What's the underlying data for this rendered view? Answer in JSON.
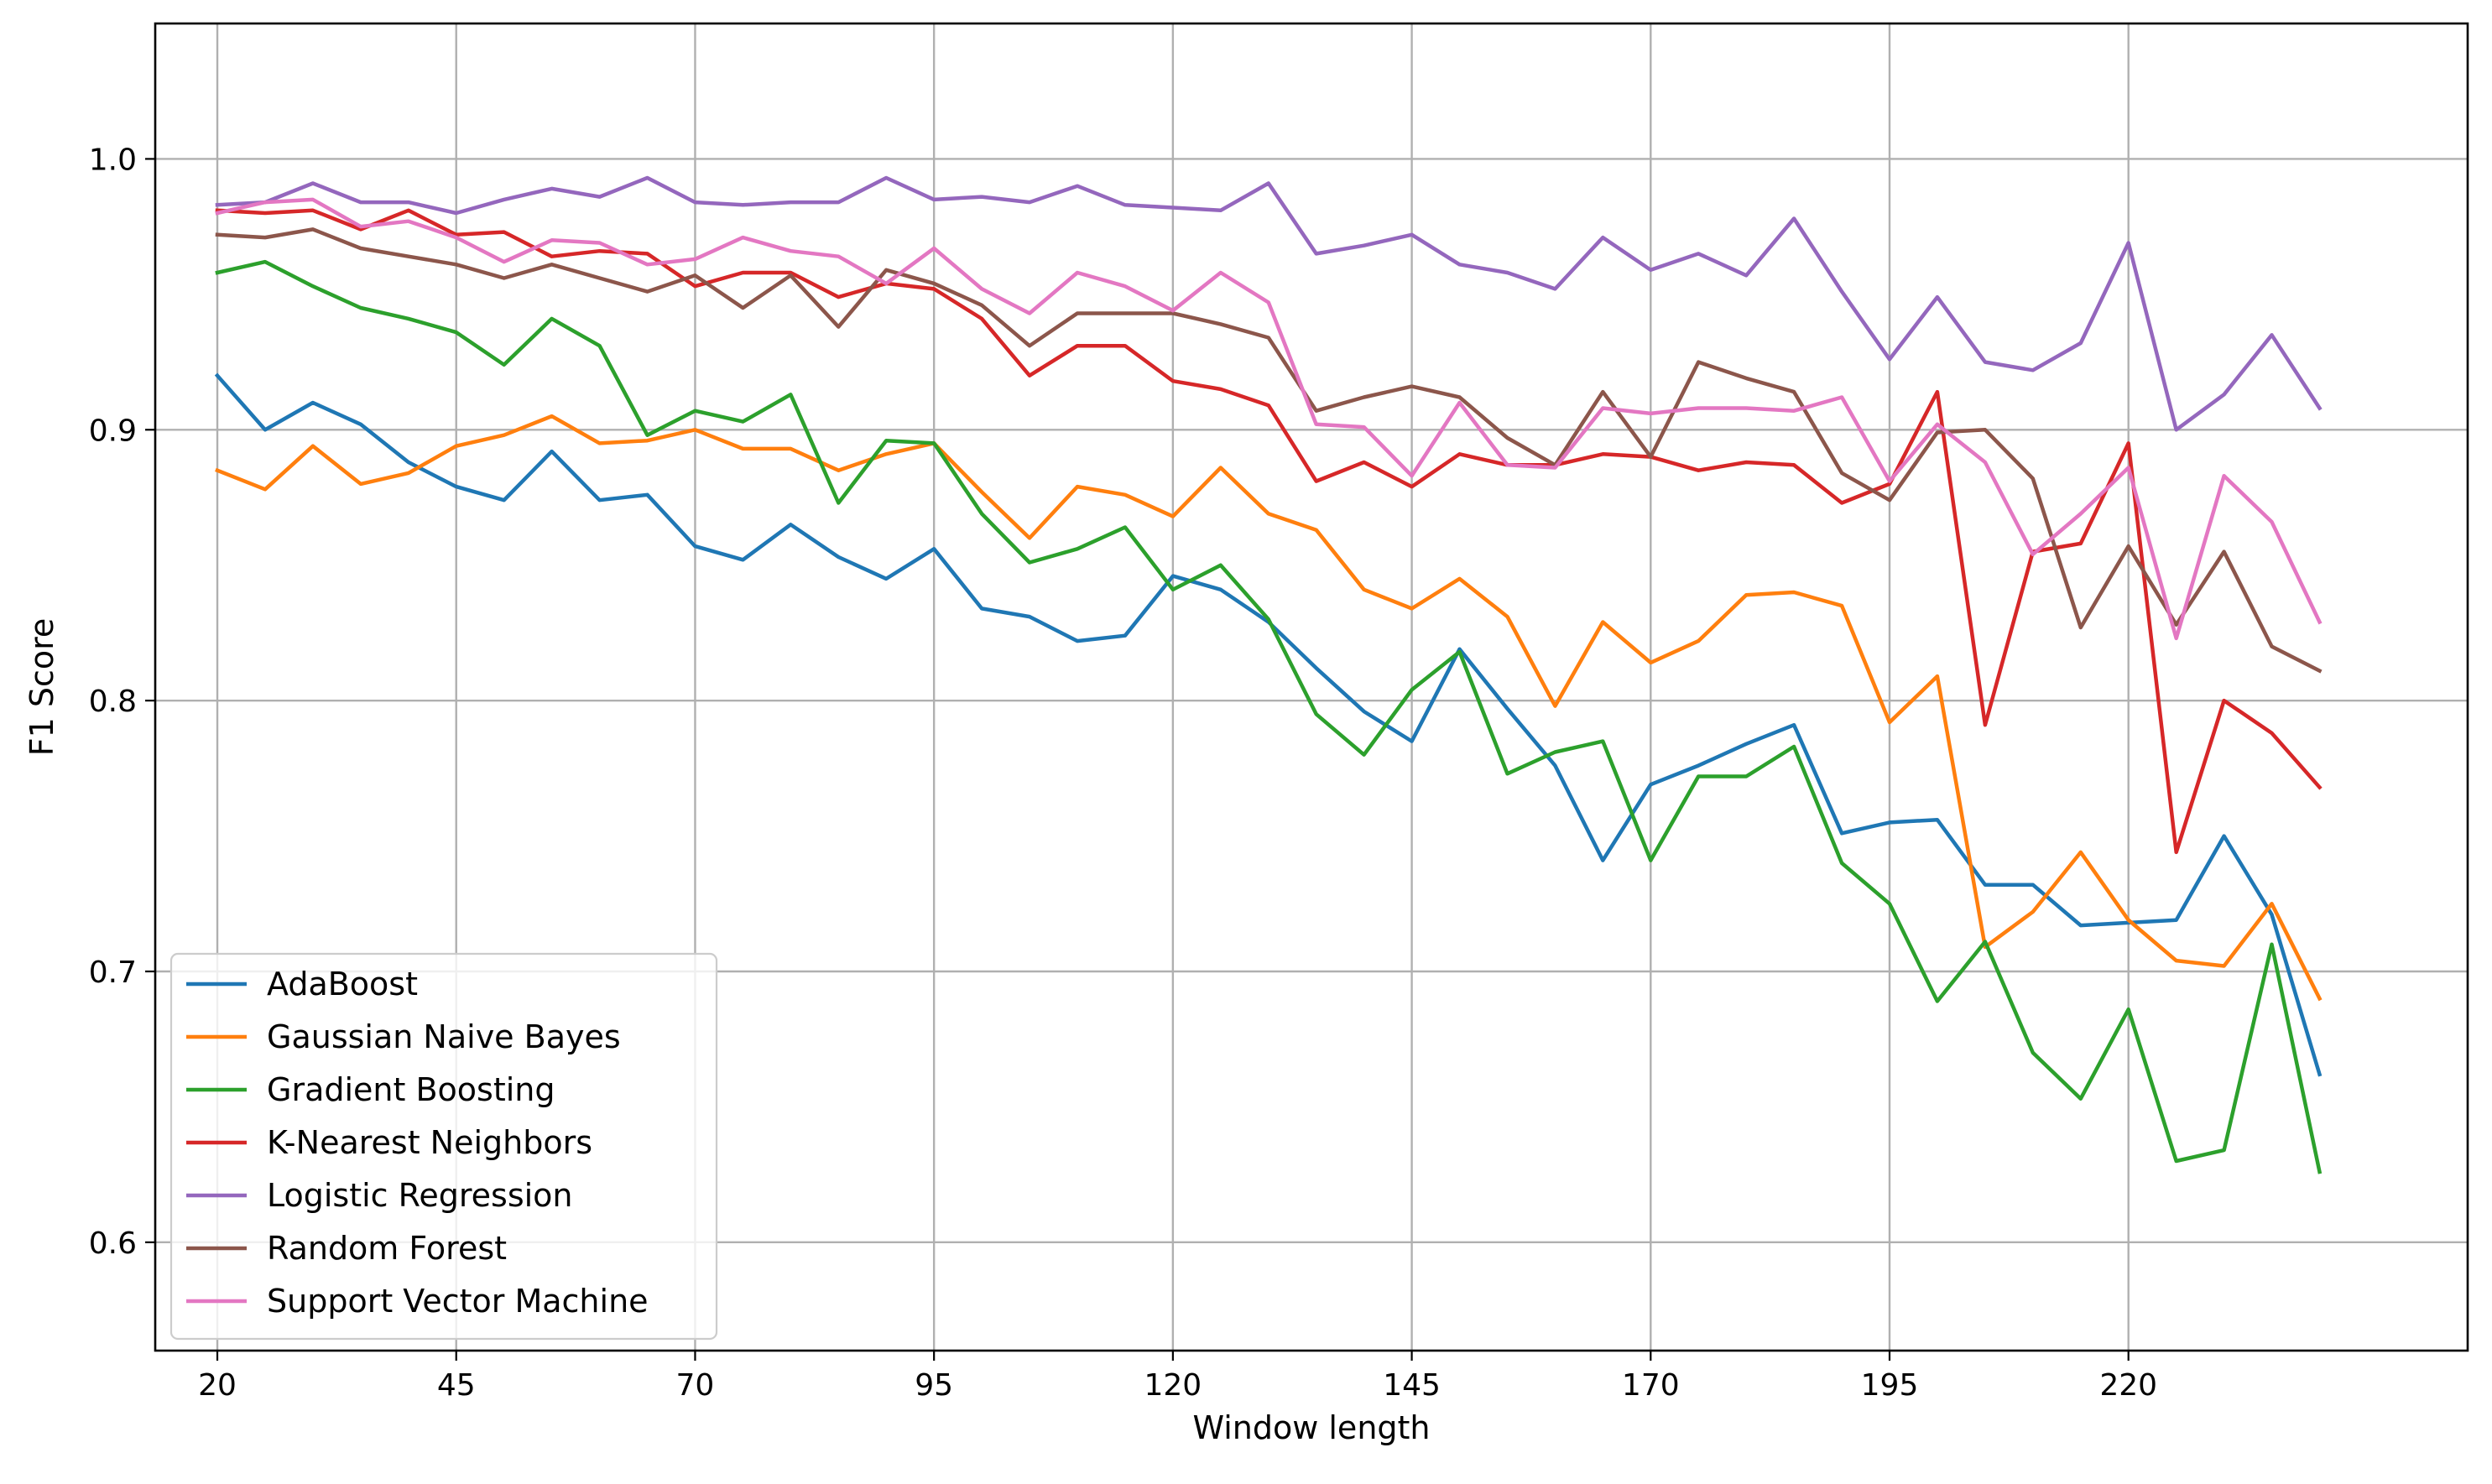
{
  "chart_data": {
    "type": "line",
    "title": "",
    "xlabel": "Window length",
    "ylabel": "F1 Score",
    "xlim": [
      13.5,
      255.5
    ],
    "ylim": [
      0.56,
      1.05
    ],
    "xticks": [
      20,
      45,
      70,
      95,
      120,
      145,
      170,
      195,
      220
    ],
    "yticks": [
      0.6,
      0.7,
      0.8,
      0.9,
      1.0
    ],
    "ytick_labels": [
      "0.6",
      "0.7",
      "0.8",
      "0.9",
      "1.0"
    ],
    "grid": true,
    "legend_position": "lower-left",
    "x": [
      20,
      25,
      30,
      35,
      40,
      45,
      50,
      55,
      60,
      65,
      70,
      75,
      80,
      85,
      90,
      95,
      100,
      105,
      110,
      115,
      120,
      125,
      130,
      135,
      140,
      145,
      150,
      155,
      160,
      165,
      170,
      175,
      180,
      185,
      190,
      195,
      200,
      205,
      210,
      215,
      220,
      225,
      230,
      235,
      240
    ],
    "series": [
      {
        "name": "AdaBoost",
        "color": "#1f77b4",
        "values": [
          0.92,
          0.9,
          0.91,
          0.902,
          0.888,
          0.879,
          0.874,
          0.892,
          0.874,
          0.876,
          0.857,
          0.852,
          0.865,
          0.853,
          0.845,
          0.856,
          0.834,
          0.831,
          0.822,
          0.824,
          0.846,
          0.841,
          0.829,
          0.812,
          0.796,
          0.785,
          0.819,
          0.797,
          0.776,
          0.741,
          0.769,
          0.776,
          0.784,
          0.791,
          0.751,
          0.755,
          0.756,
          0.732,
          0.732,
          0.717,
          0.718,
          0.719,
          0.75,
          0.721,
          0.662
        ]
      },
      {
        "name": "Gaussian Naive Bayes",
        "color": "#ff7f0e",
        "values": [
          0.885,
          0.878,
          0.894,
          0.88,
          0.884,
          0.894,
          0.898,
          0.905,
          0.895,
          0.896,
          0.9,
          0.893,
          0.893,
          0.885,
          0.891,
          0.895,
          0.877,
          0.86,
          0.879,
          0.876,
          0.868,
          0.886,
          0.869,
          0.863,
          0.841,
          0.834,
          0.845,
          0.831,
          0.798,
          0.829,
          0.814,
          0.822,
          0.839,
          0.84,
          0.835,
          0.792,
          0.809,
          0.709,
          0.722,
          0.744,
          0.719,
          0.704,
          0.702,
          0.725,
          0.69
        ]
      },
      {
        "name": "Gradient Boosting",
        "color": "#2ca02c",
        "values": [
          0.958,
          0.962,
          0.953,
          0.945,
          0.941,
          0.936,
          0.924,
          0.941,
          0.931,
          0.898,
          0.907,
          0.903,
          0.913,
          0.873,
          0.896,
          0.895,
          0.869,
          0.851,
          0.856,
          0.864,
          0.841,
          0.85,
          0.83,
          0.795,
          0.78,
          0.804,
          0.818,
          0.773,
          0.781,
          0.785,
          0.741,
          0.772,
          0.772,
          0.783,
          0.74,
          0.725,
          0.689,
          0.711,
          0.67,
          0.653,
          0.686,
          0.63,
          0.634,
          0.71,
          0.626
        ]
      },
      {
        "name": "K-Nearest Neighbors",
        "color": "#d62728",
        "values": [
          0.981,
          0.98,
          0.981,
          0.974,
          0.981,
          0.972,
          0.973,
          0.964,
          0.966,
          0.965,
          0.953,
          0.958,
          0.958,
          0.949,
          0.954,
          0.952,
          0.941,
          0.92,
          0.931,
          0.931,
          0.918,
          0.915,
          0.909,
          0.881,
          0.888,
          0.879,
          0.891,
          0.887,
          0.887,
          0.891,
          0.89,
          0.885,
          0.888,
          0.887,
          0.873,
          0.88,
          0.914,
          0.791,
          0.855,
          0.858,
          0.895,
          0.744,
          0.8,
          0.788,
          0.768
        ]
      },
      {
        "name": "Logistic Regression",
        "color": "#9467bd",
        "values": [
          0.983,
          0.984,
          0.991,
          0.984,
          0.984,
          0.98,
          0.985,
          0.989,
          0.986,
          0.993,
          0.984,
          0.983,
          0.984,
          0.984,
          0.993,
          0.985,
          0.986,
          0.984,
          0.99,
          0.983,
          0.982,
          0.981,
          0.991,
          0.965,
          0.968,
          0.972,
          0.961,
          0.958,
          0.952,
          0.971,
          0.959,
          0.965,
          0.957,
          0.978,
          0.951,
          0.926,
          0.949,
          0.925,
          0.922,
          0.932,
          0.969,
          0.9,
          0.913,
          0.935,
          0.908
        ]
      },
      {
        "name": "Random Forest",
        "color": "#8c564b",
        "values": [
          0.972,
          0.971,
          0.974,
          0.967,
          0.964,
          0.961,
          0.956,
          0.961,
          0.956,
          0.951,
          0.957,
          0.945,
          0.957,
          0.938,
          0.959,
          0.954,
          0.946,
          0.931,
          0.943,
          0.943,
          0.943,
          0.939,
          0.934,
          0.907,
          0.912,
          0.916,
          0.912,
          0.897,
          0.887,
          0.914,
          0.89,
          0.925,
          0.919,
          0.914,
          0.884,
          0.874,
          0.899,
          0.9,
          0.882,
          0.827,
          0.857,
          0.828,
          0.855,
          0.82,
          0.811
        ]
      },
      {
        "name": "Support Vector Machine",
        "color": "#e377c2",
        "values": [
          0.98,
          0.984,
          0.985,
          0.975,
          0.977,
          0.971,
          0.962,
          0.97,
          0.969,
          0.961,
          0.963,
          0.971,
          0.966,
          0.964,
          0.954,
          0.967,
          0.952,
          0.943,
          0.958,
          0.953,
          0.944,
          0.958,
          0.947,
          0.902,
          0.901,
          0.883,
          0.91,
          0.887,
          0.886,
          0.908,
          0.906,
          0.908,
          0.908,
          0.907,
          0.912,
          0.881,
          0.902,
          0.888,
          0.854,
          0.869,
          0.886,
          0.823,
          0.883,
          0.866,
          0.829
        ]
      }
    ]
  }
}
